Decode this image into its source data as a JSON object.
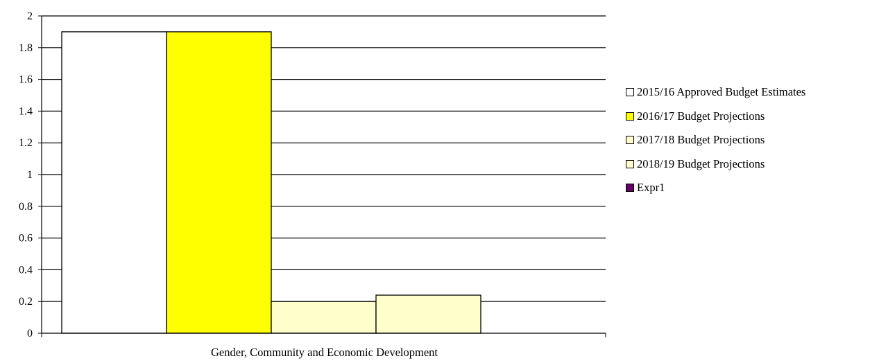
{
  "chart_data": {
    "type": "bar",
    "categories": [
      "Gender, Community and Economic Development"
    ],
    "series": [
      {
        "name": "2015/16 Approved Budget Estimates",
        "values": [
          1.9
        ],
        "color": "#ffffff"
      },
      {
        "name": "2016/17 Budget Projections",
        "values": [
          1.9
        ],
        "color": "#ffff00"
      },
      {
        "name": "2017/18 Budget Projections",
        "values": [
          0.2
        ],
        "color": "#ffffcc"
      },
      {
        "name": "2018/19 Budget Projections",
        "values": [
          0.24
        ],
        "color": "#ffffcc"
      },
      {
        "name": "Expr1",
        "values": [
          0
        ],
        "color": "#660066"
      }
    ],
    "title": "",
    "xlabel": "",
    "ylabel": "",
    "ylim": [
      0,
      2
    ],
    "yticks": [
      "0",
      "0.2",
      "0.4",
      "0.6",
      "0.8",
      "1",
      "1.2",
      "1.4",
      "1.6",
      "1.8",
      "2"
    ],
    "grid": true,
    "legend_position": "right"
  }
}
